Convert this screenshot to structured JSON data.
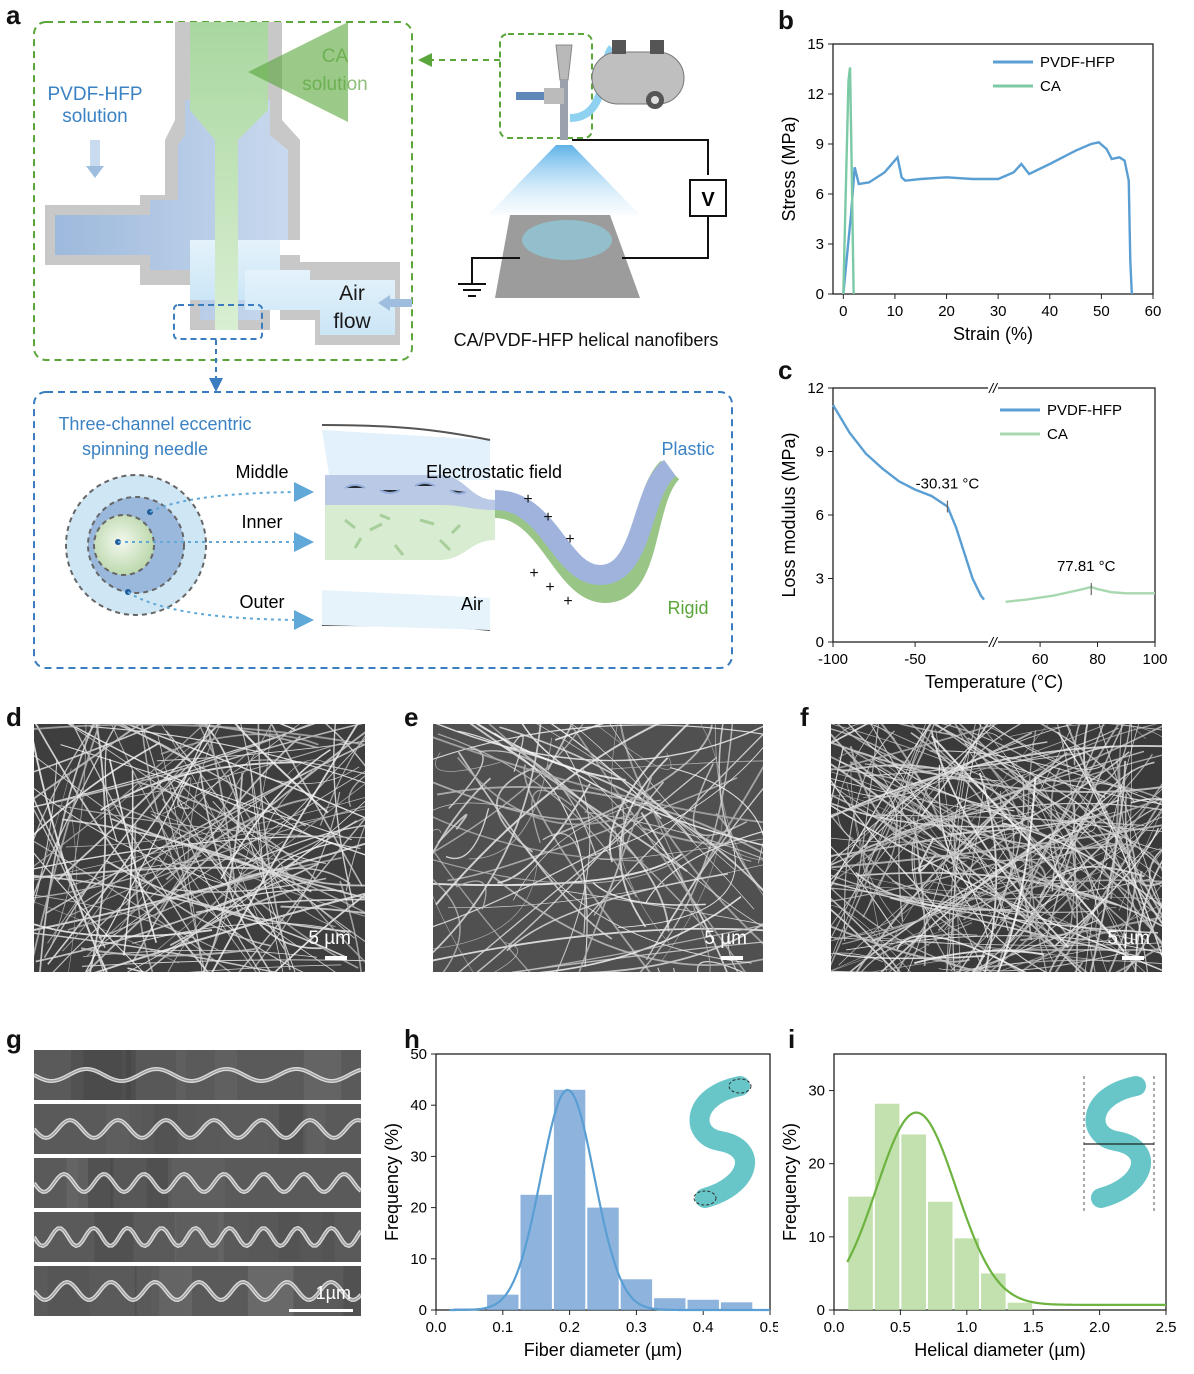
{
  "panel_labels": {
    "a": "a",
    "b": "b",
    "c": "c",
    "d": "d",
    "e": "e",
    "f": "f",
    "g": "g",
    "h": "h",
    "i": "i"
  },
  "schematic": {
    "ca_solution": [
      "CA",
      "solution"
    ],
    "pvdf_solution": [
      "PVDF-HFP",
      "solution"
    ],
    "air_flow": [
      "Air",
      "flow"
    ],
    "voltage": "V",
    "caption": "CA/PVDF-HFP helical nanofibers",
    "needle_title": [
      "Three-channel eccentric",
      "spinning needle"
    ],
    "middle": "Middle",
    "inner": "Inner",
    "outer": "Outer",
    "field": "Electrostatic field",
    "air": "Air",
    "plastic": "Plastic",
    "rigid": "Rigid",
    "plus": "+",
    "colors": {
      "green_dash": "#5aa63a",
      "blue_dash": "#3a7cc0",
      "pvdf": "#3b82c4",
      "ca": "#8cc07a"
    }
  },
  "sem": {
    "d_scale": "5 µm",
    "e_scale": "5 µm",
    "f_scale": "5 µm",
    "g_scale": "1µm"
  },
  "chart_data": [
    {
      "id": "b",
      "type": "line",
      "xlabel": "Strain (%)",
      "ylabel": "Stress (MPa)",
      "xlim": [
        -2,
        60
      ],
      "ylim": [
        0,
        15
      ],
      "xticks": [
        0,
        10,
        20,
        30,
        40,
        50,
        60
      ],
      "yticks": [
        0,
        3,
        6,
        9,
        12,
        15
      ],
      "legend_position": "top-right",
      "series": [
        {
          "name": "PVDF-HFP",
          "color": "#5a9fd4",
          "x": [
            0,
            1.5,
            2.2,
            3,
            5,
            8,
            10.5,
            11.3,
            12,
            15,
            20,
            25,
            30,
            33,
            34.5,
            36,
            40,
            45,
            48,
            49.5,
            51,
            52,
            53.5,
            54.5,
            55.3,
            55.6,
            55.9
          ],
          "y": [
            0,
            4.8,
            7.6,
            6.6,
            6.7,
            7.3,
            8.2,
            7.0,
            6.8,
            6.9,
            7.0,
            6.9,
            6.9,
            7.3,
            7.8,
            7.2,
            7.8,
            8.6,
            9.0,
            9.1,
            8.7,
            8.1,
            8.2,
            8.0,
            6.8,
            2.0,
            0
          ]
        },
        {
          "name": "CA",
          "color": "#7ccaa5",
          "x": [
            0,
            0.5,
            1.0,
            1.3,
            1.6,
            2.0
          ],
          "y": [
            0,
            6.5,
            12.8,
            13.6,
            8.0,
            0
          ]
        }
      ]
    },
    {
      "id": "c",
      "type": "line",
      "xlabel": "Temperature (°C)",
      "ylabel": "Loss modulus (MPa)",
      "ylim": [
        0,
        12
      ],
      "yticks": [
        0,
        3,
        6,
        9,
        12
      ],
      "axis_break": "//",
      "left_segment": {
        "xlim": [
          -100,
          -5
        ],
        "xticks": [
          -100,
          -50
        ]
      },
      "right_segment": {
        "xlim": [
          45,
          100
        ],
        "xticks": [
          60,
          80,
          100
        ]
      },
      "legend_position": "top-right",
      "annotations": [
        {
          "text": "-30.31 °C",
          "x": -30.31,
          "y": 6.4
        },
        {
          "text": "77.81 °C",
          "x": 77.81,
          "y": 2.5
        }
      ],
      "series": [
        {
          "name": "PVDF-HFP",
          "color": "#5a9fd4",
          "segment": "left",
          "x": [
            -100,
            -90,
            -80,
            -70,
            -60,
            -50,
            -40,
            -30.31,
            -25,
            -20,
            -15,
            -10,
            -8
          ],
          "y": [
            11.2,
            9.9,
            8.9,
            8.2,
            7.6,
            7.2,
            6.9,
            6.4,
            5.4,
            4.2,
            3.0,
            2.2,
            2.0
          ]
        },
        {
          "name": "CA",
          "color": "#a8d8b0",
          "segment": "right",
          "x": [
            48,
            55,
            60,
            65,
            70,
            75,
            77.81,
            80,
            85,
            90,
            95,
            100
          ],
          "y": [
            1.9,
            2.0,
            2.1,
            2.2,
            2.35,
            2.5,
            2.6,
            2.5,
            2.35,
            2.3,
            2.3,
            2.3
          ]
        }
      ]
    },
    {
      "id": "h",
      "type": "bar",
      "xlabel": "Fiber diameter (µm)",
      "ylabel": "Frequency (%)",
      "xlim": [
        0,
        0.5
      ],
      "ylim": [
        0,
        50
      ],
      "xticks": [
        0.0,
        0.1,
        0.2,
        0.3,
        0.4,
        0.5
      ],
      "yticks": [
        0,
        10,
        20,
        30,
        40,
        50
      ],
      "bin_width": 0.05,
      "bar_color": "#7aa6d6",
      "fit_color": "#5a9fd4",
      "bins": [
        0.05,
        0.1,
        0.15,
        0.2,
        0.25,
        0.3,
        0.35,
        0.4,
        0.45
      ],
      "values": [
        0.3,
        3,
        22.5,
        43,
        20,
        6,
        2.3,
        2,
        1.5
      ],
      "fit": {
        "mean": 0.197,
        "sigma": 0.04,
        "peak": 43,
        "base": 0
      }
    },
    {
      "id": "i",
      "type": "bar",
      "xlabel": "Helical diameter (µm)",
      "ylabel": "Frequency (%)",
      "xlim": [
        0,
        2.5
      ],
      "ylim": [
        0,
        35
      ],
      "xticks": [
        0.0,
        0.5,
        1.0,
        1.5,
        2.0,
        2.5
      ],
      "yticks": [
        0,
        10,
        20,
        30
      ],
      "bin_width": 0.2,
      "bar_color": "#b7dca0",
      "fit_color": "#6db33f",
      "bins": [
        0.2,
        0.4,
        0.6,
        0.8,
        1.0,
        1.2,
        1.4
      ],
      "values": [
        15.5,
        28.2,
        24,
        14.8,
        9.8,
        5,
        1
      ],
      "fit": {
        "mean": 0.62,
        "sigma": 0.3,
        "peak": 27,
        "base": 0.7
      }
    }
  ]
}
